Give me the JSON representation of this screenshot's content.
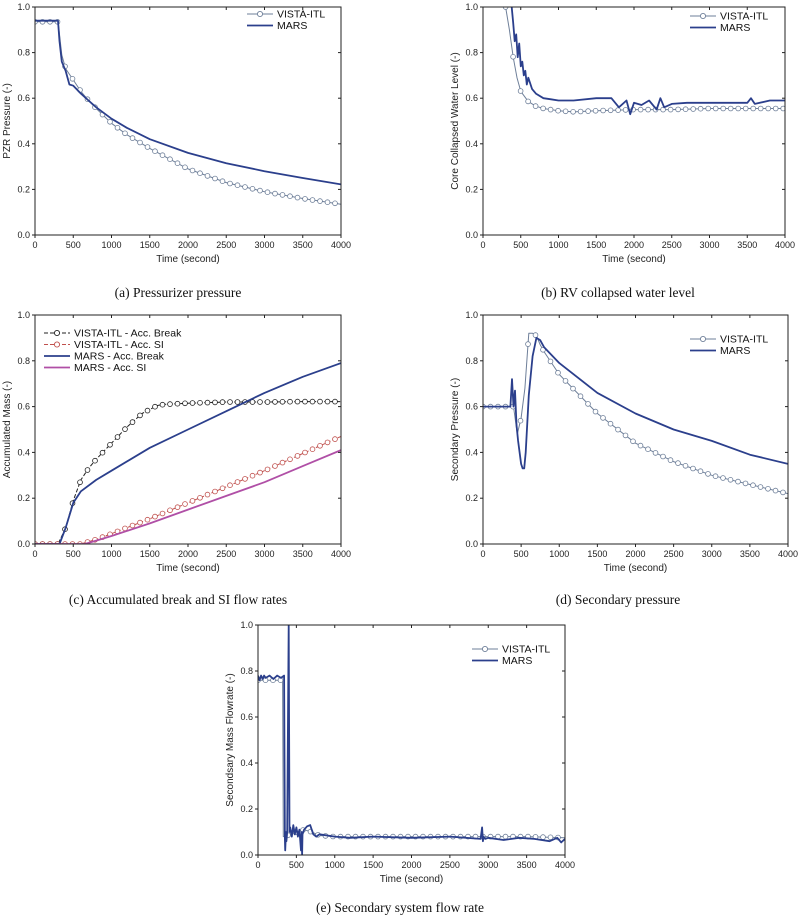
{
  "figure": {
    "captions": [
      "(a)  Pressurizer pressure",
      "(b)  RV  collapsed water level",
      "(c)  Accumulated break and SI flow rates",
      "(d)  Secondary pressure",
      "(e)  Secondary system flow rate"
    ]
  },
  "colors": {
    "vista": "#6e7f99",
    "mars": "#2b3f8c",
    "vista_si": "#c0504d",
    "mars_si": "#b04fa6",
    "black": "#222222"
  },
  "chart_data": [
    {
      "id": "a",
      "type": "line",
      "title": "",
      "xlabel": "Time (second)",
      "ylabel": "PZR Pressure (-)",
      "xlim": [
        0,
        4000
      ],
      "ylim": [
        0,
        1.0
      ],
      "xticks": [
        0,
        500,
        1000,
        1500,
        2000,
        2500,
        3000,
        3500,
        4000
      ],
      "yticks": [
        0.0,
        0.2,
        0.4,
        0.6,
        0.8,
        1.0
      ],
      "ytick_labels": [
        "0.0",
        "0.2",
        "0.4",
        "0.6",
        "0.8",
        "1.0"
      ],
      "legend_position": "top-right",
      "series": [
        {
          "name": "VISTA-ITL",
          "style": "marker-line",
          "color_key": "vista",
          "x": [
            0,
            300,
            320,
            350,
            400,
            500,
            600,
            700,
            800,
            1000,
            1200,
            1500,
            2000,
            2500,
            3000,
            3500,
            4000
          ],
          "y": [
            0.935,
            0.935,
            0.88,
            0.79,
            0.73,
            0.68,
            0.63,
            0.59,
            0.555,
            0.49,
            0.44,
            0.38,
            0.29,
            0.23,
            0.19,
            0.16,
            0.135
          ]
        },
        {
          "name": "MARS",
          "style": "line",
          "color_key": "mars",
          "x": [
            0,
            300,
            320,
            350,
            400,
            450,
            500,
            600,
            700,
            800,
            1000,
            1200,
            1500,
            2000,
            2500,
            3000,
            3500,
            4000
          ],
          "y": [
            0.94,
            0.94,
            0.85,
            0.76,
            0.72,
            0.66,
            0.655,
            0.62,
            0.59,
            0.56,
            0.51,
            0.47,
            0.42,
            0.36,
            0.315,
            0.28,
            0.25,
            0.222
          ]
        }
      ]
    },
    {
      "id": "b",
      "type": "line",
      "title": "",
      "xlabel": "Time (second)",
      "ylabel": "Core Collapsed Water Level (-)",
      "xlim": [
        0,
        4000
      ],
      "ylim": [
        0,
        1.0
      ],
      "xticks": [
        0,
        500,
        1000,
        1500,
        2000,
        2500,
        3000,
        3500,
        4000
      ],
      "yticks": [
        0.0,
        0.2,
        0.4,
        0.6,
        0.8,
        1.0
      ],
      "ytick_labels": [
        "0.0",
        "0.2",
        "0.4",
        "0.6",
        "0.8",
        "1.0"
      ],
      "legend_position": "top-right",
      "series": [
        {
          "name": "VISTA-ITL",
          "style": "marker-line",
          "color_key": "vista",
          "x": [
            300,
            350,
            400,
            450,
            500,
            600,
            700,
            800,
            1000,
            1200,
            1500,
            2000,
            2500,
            3000,
            3500,
            4000
          ],
          "y": [
            1.0,
            0.9,
            0.78,
            0.69,
            0.63,
            0.585,
            0.565,
            0.555,
            0.545,
            0.54,
            0.545,
            0.55,
            0.55,
            0.555,
            0.555,
            0.555
          ]
        },
        {
          "name": "MARS",
          "style": "line",
          "color_key": "mars",
          "x": [
            380,
            400,
            420,
            440,
            460,
            480,
            500,
            520,
            540,
            560,
            580,
            600,
            650,
            700,
            800,
            900,
            1000,
            1200,
            1500,
            1700,
            1800,
            1900,
            1950,
            2000,
            2100,
            2200,
            2300,
            2350,
            2400,
            2500,
            2700,
            3000,
            3300,
            3500,
            3550,
            3600,
            3800,
            4000
          ],
          "y": [
            1.0,
            0.93,
            0.85,
            0.88,
            0.78,
            0.84,
            0.74,
            0.76,
            0.7,
            0.72,
            0.66,
            0.69,
            0.64,
            0.62,
            0.6,
            0.595,
            0.59,
            0.59,
            0.6,
            0.6,
            0.56,
            0.59,
            0.53,
            0.58,
            0.57,
            0.59,
            0.55,
            0.6,
            0.56,
            0.575,
            0.58,
            0.58,
            0.58,
            0.58,
            0.6,
            0.575,
            0.59,
            0.59
          ]
        }
      ]
    },
    {
      "id": "c",
      "type": "line",
      "title": "",
      "xlabel": "Time (second)",
      "ylabel": "Accumulated Mass (-)",
      "xlim": [
        0,
        4000
      ],
      "ylim": [
        0,
        1.0
      ],
      "xticks": [
        0,
        500,
        1000,
        1500,
        2000,
        2500,
        3000,
        3500,
        4000
      ],
      "yticks": [
        0.0,
        0.2,
        0.4,
        0.6,
        0.8,
        1.0
      ],
      "ytick_labels": [
        "0.0",
        "0.2",
        "0.4",
        "0.6",
        "0.8",
        "1.0"
      ],
      "legend_position": "top-left",
      "series": [
        {
          "name": "VISTA-ITL - Acc. Break",
          "style": "marker-dash",
          "color_key": "black",
          "x": [
            0,
            300,
            400,
            500,
            600,
            700,
            800,
            1000,
            1200,
            1400,
            1600,
            1700,
            2000,
            2500,
            3000,
            3500,
            4000
          ],
          "y": [
            0,
            0,
            0.07,
            0.19,
            0.28,
            0.33,
            0.37,
            0.44,
            0.51,
            0.57,
            0.605,
            0.61,
            0.615,
            0.62,
            0.62,
            0.622,
            0.622
          ]
        },
        {
          "name": "VISTA-ITL - Acc. SI",
          "style": "marker-dash",
          "color_key": "vista_si",
          "x": [
            0,
            600,
            800,
            1000,
            1500,
            2000,
            2500,
            3000,
            3500,
            4000
          ],
          "y": [
            0,
            0,
            0.02,
            0.045,
            0.11,
            0.18,
            0.25,
            0.32,
            0.395,
            0.47
          ]
        },
        {
          "name": "MARS - Acc. Break",
          "style": "line",
          "color_key": "mars",
          "x": [
            0,
            320,
            400,
            500,
            600,
            800,
            1000,
            1500,
            2000,
            2500,
            3000,
            3500,
            4000
          ],
          "y": [
            0,
            0,
            0.07,
            0.18,
            0.23,
            0.28,
            0.32,
            0.42,
            0.5,
            0.58,
            0.66,
            0.73,
            0.79
          ]
        },
        {
          "name": "MARS - Acc. SI",
          "style": "line",
          "color_key": "mars_si",
          "x": [
            0,
            650,
            800,
            1000,
            1500,
            2000,
            2500,
            3000,
            3500,
            4000
          ],
          "y": [
            0,
            0,
            0.015,
            0.035,
            0.09,
            0.15,
            0.21,
            0.27,
            0.34,
            0.41
          ]
        }
      ]
    },
    {
      "id": "d",
      "type": "line",
      "title": "",
      "xlabel": "Time (second)",
      "ylabel": "Secondary Pressure (-)",
      "xlim": [
        0,
        4000
      ],
      "ylim": [
        0,
        1.0
      ],
      "xticks": [
        0,
        500,
        1000,
        1500,
        2000,
        2500,
        3000,
        3500,
        4000
      ],
      "yticks": [
        0.0,
        0.2,
        0.4,
        0.6,
        0.8,
        1.0
      ],
      "ytick_labels": [
        "0.0",
        "0.2",
        "0.4",
        "0.6",
        "0.8",
        "1.0"
      ],
      "legend_position": "top-right",
      "series": [
        {
          "name": "VISTA-ITL",
          "style": "marker-line",
          "color_key": "vista",
          "x": [
            0,
            350,
            400,
            450,
            500,
            550,
            600,
            650,
            700,
            750,
            800,
            1000,
            1500,
            2000,
            2500,
            3000,
            3500,
            4000
          ],
          "y": [
            0.6,
            0.6,
            0.6,
            0.48,
            0.55,
            0.68,
            0.92,
            0.92,
            0.91,
            0.87,
            0.84,
            0.74,
            0.57,
            0.44,
            0.36,
            0.3,
            0.26,
            0.22
          ]
        },
        {
          "name": "MARS",
          "style": "line",
          "color_key": "mars",
          "x": [
            0,
            360,
            380,
            400,
            420,
            440,
            460,
            480,
            500,
            520,
            540,
            560,
            600,
            650,
            700,
            750,
            800,
            1000,
            1500,
            2000,
            2500,
            3000,
            3500,
            4000
          ],
          "y": [
            0.6,
            0.6,
            0.72,
            0.6,
            0.67,
            0.52,
            0.45,
            0.4,
            0.35,
            0.33,
            0.33,
            0.4,
            0.65,
            0.82,
            0.9,
            0.89,
            0.86,
            0.79,
            0.66,
            0.57,
            0.5,
            0.45,
            0.39,
            0.35
          ]
        }
      ]
    },
    {
      "id": "e",
      "type": "line",
      "title": "",
      "xlabel": "Time (second)",
      "ylabel": "Secondsary Mass Flowrate (-)",
      "xlim": [
        0,
        4000
      ],
      "ylim": [
        0,
        1.0
      ],
      "xticks": [
        0,
        500,
        1000,
        1500,
        2000,
        2500,
        3000,
        3500,
        4000
      ],
      "yticks": [
        0.0,
        0.2,
        0.4,
        0.6,
        0.8,
        1.0
      ],
      "ytick_labels": [
        "0.0",
        "0.2",
        "0.4",
        "0.6",
        "0.8",
        "1.0"
      ],
      "legend_position": "top-right",
      "series": [
        {
          "name": "VISTA-ITL",
          "style": "marker-line",
          "color_key": "vista",
          "x": [
            0,
            320,
            330,
            380,
            400,
            500,
            600,
            700,
            800,
            1000,
            1500,
            2000,
            2500,
            3000,
            3500,
            4000
          ],
          "y": [
            0.76,
            0.76,
            0.08,
            0.08,
            0.09,
            0.1,
            0.11,
            0.1,
            0.085,
            0.08,
            0.08,
            0.08,
            0.08,
            0.08,
            0.08,
            0.075
          ]
        },
        {
          "name": "MARS",
          "style": "line",
          "color_key": "mars",
          "x": [
            0,
            20,
            40,
            60,
            80,
            100,
            150,
            200,
            250,
            300,
            340,
            350,
            355,
            365,
            370,
            380,
            390,
            400,
            410,
            420,
            440,
            460,
            480,
            500,
            520,
            540,
            560,
            570,
            575,
            580,
            600,
            640,
            680,
            720,
            760,
            800,
            1000,
            1200,
            1500,
            2000,
            2500,
            2900,
            2920,
            2930,
            2940,
            2960,
            3000,
            3200,
            3400,
            3600,
            3800,
            3900,
            3950,
            4000
          ],
          "y": [
            0.78,
            0.76,
            0.78,
            0.765,
            0.78,
            0.77,
            0.78,
            0.765,
            0.78,
            0.77,
            0.78,
            0.07,
            0.02,
            0.1,
            0.06,
            0.1,
            0.53,
            1.0,
            0.1,
            0.12,
            0.08,
            0.13,
            0.09,
            0.12,
            0.08,
            0.11,
            0.02,
            0.1,
            0.0,
            0.09,
            0.11,
            0.125,
            0.13,
            0.09,
            0.08,
            0.09,
            0.08,
            0.075,
            0.08,
            0.075,
            0.08,
            0.07,
            0.12,
            0.06,
            0.08,
            0.07,
            0.075,
            0.065,
            0.075,
            0.07,
            0.06,
            0.075,
            0.055,
            0.07
          ]
        }
      ]
    }
  ]
}
